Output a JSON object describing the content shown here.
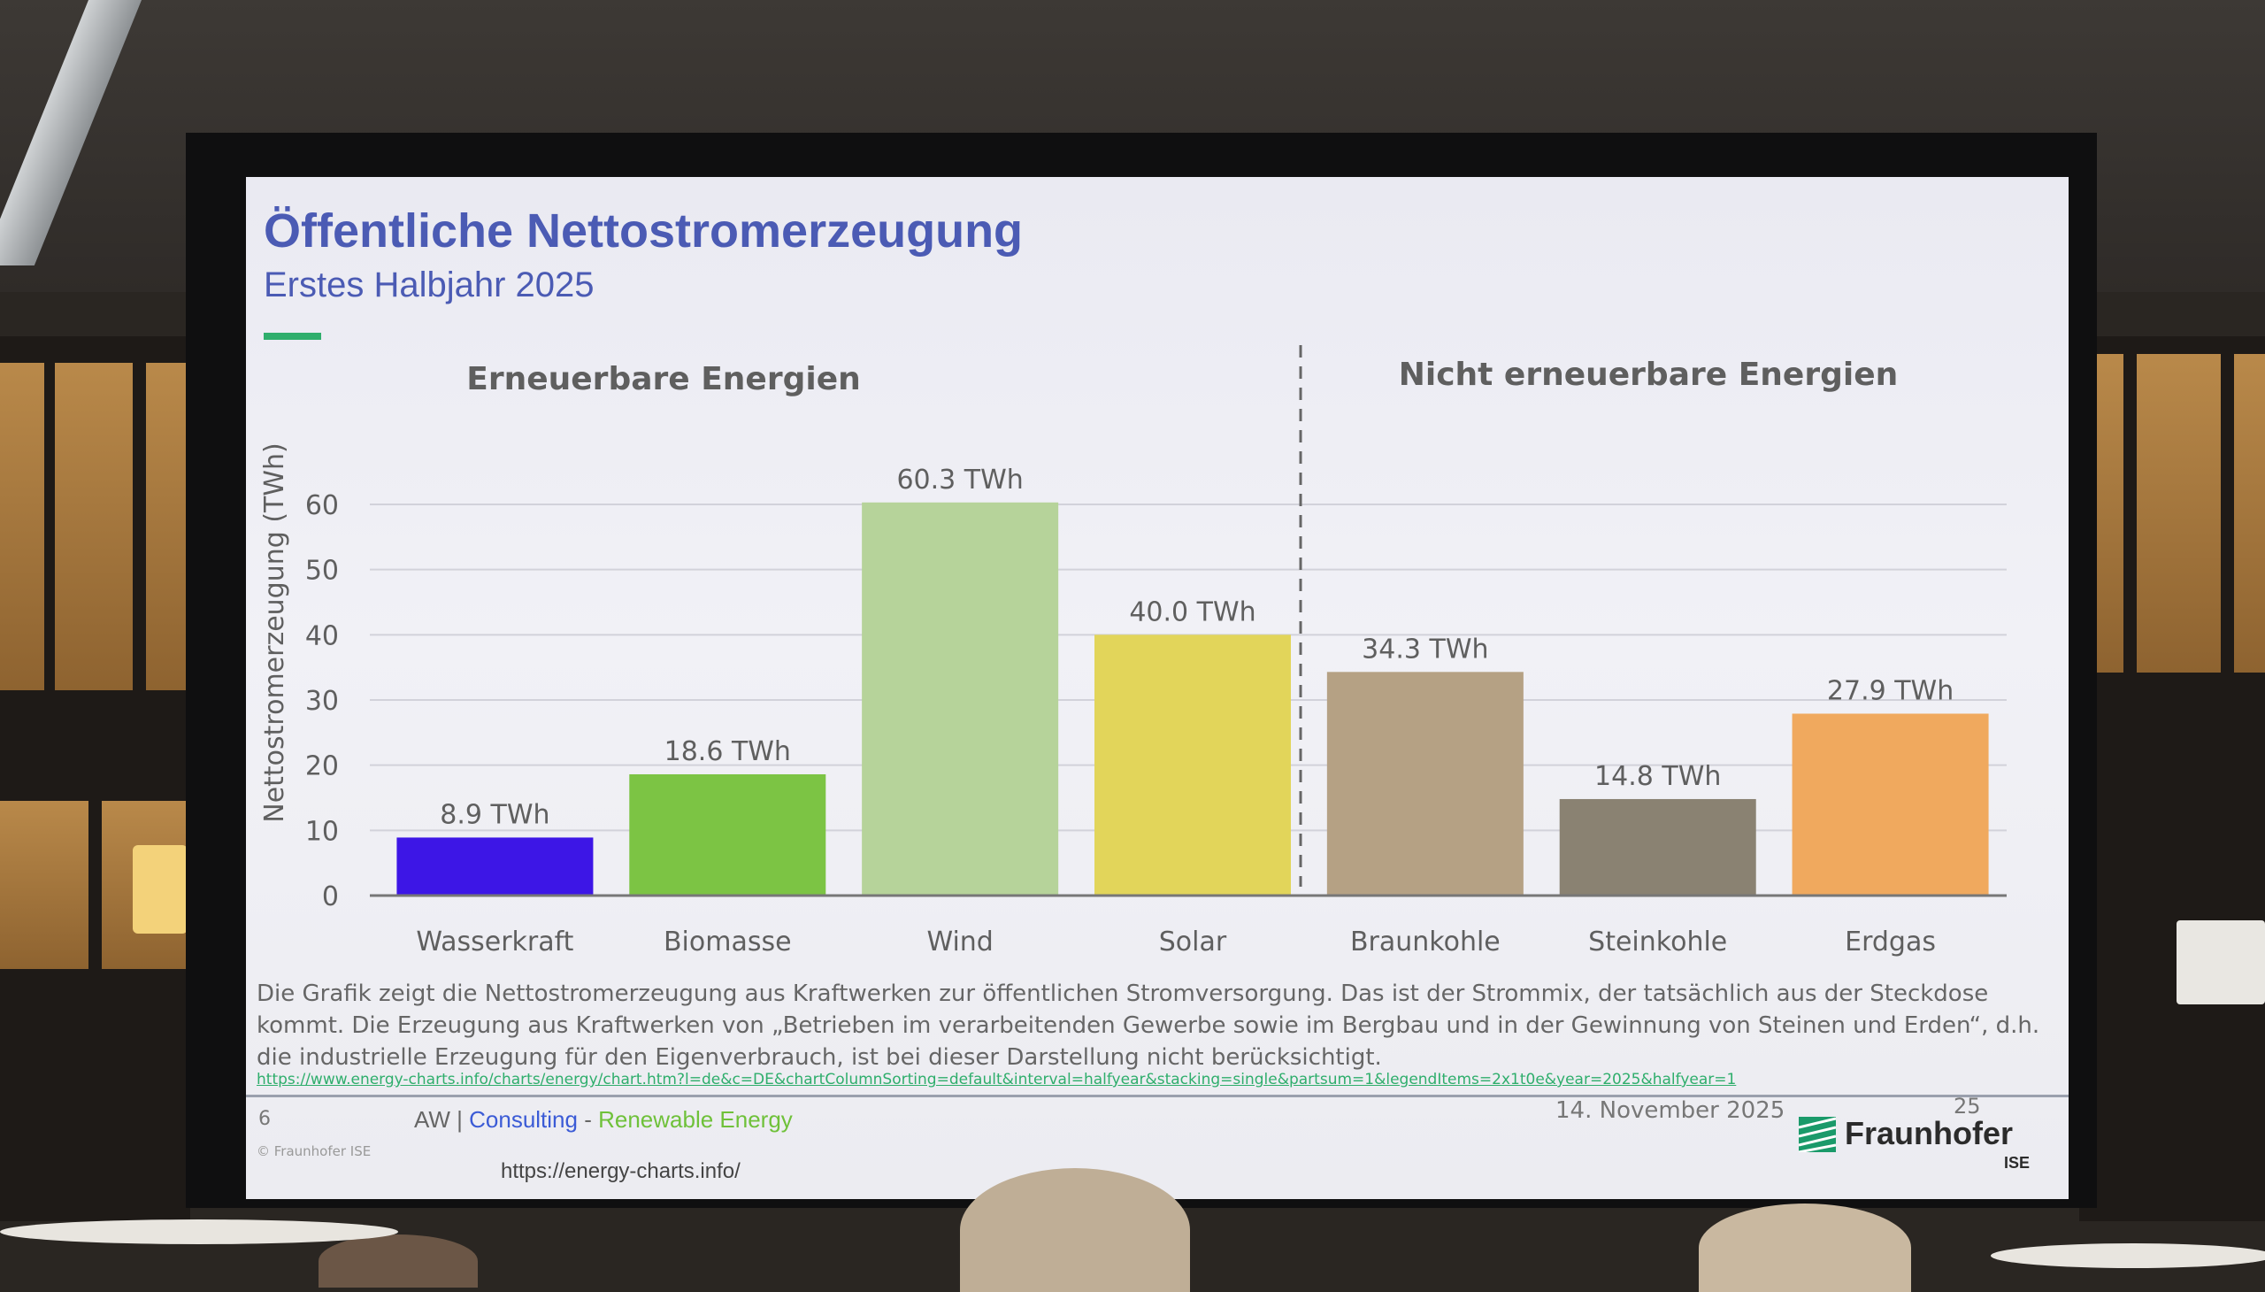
{
  "slide": {
    "title": "Öffentliche Nettostromerzeugung",
    "subtitle": "Erstes Halbjahr 2025",
    "caption": "Die Grafik zeigt die Nettostromerzeugung aus Kraftwerken zur öffentlichen Stromversorgung. Das ist der Strommix, der tatsächlich aus der Steckdose kommt. Die Erzeugung aus Kraftwerken von „Betrieben im verarbeitenden Gewerbe sowie im Bergbau und in der Gewinnung von Steinen und Erden“, d.h. die industrielle Erzeugung für den Eigenverbrauch, ist bei dieser Darstellung nicht berücksichtigt.",
    "source_link": "https://www.energy-charts.info/charts/energy/chart.htm?l=de&c=DE&chartColumnSorting=default&interval=halfyear&stacking=single&partsum=1&legendItems=2x1t0e&year=2025&halfyear=1",
    "footer": {
      "page_left": "6",
      "aw_prefix": "AW | ",
      "aw_consulting": "Consulting",
      "aw_dash": " - ",
      "aw_renewable": "Renewable Energy",
      "copyright": "© Fraunhofer ISE",
      "date": "14. November 2025",
      "page_right": "25",
      "url": "https://energy-charts.info/",
      "logo_text": "Fraunhofer",
      "logo_sub": "ISE"
    },
    "colors": {
      "title": "#4b5bb4",
      "accent": "#2fae6c"
    }
  },
  "chart_data": {
    "type": "bar",
    "group_labels": [
      "Erneuerbare Energien",
      "Nicht erneuerbare Energien"
    ],
    "ylabel": "Nettostromerzeugung (TWh)",
    "xlabel": "",
    "ylim": [
      0,
      60
    ],
    "yticks": [
      0,
      10,
      20,
      30,
      40,
      50,
      60
    ],
    "grid": true,
    "categories": [
      "Wasserkraft",
      "Biomasse",
      "Wind",
      "Solar",
      "Braunkohle",
      "Steinkohle",
      "Erdgas"
    ],
    "values": [
      8.9,
      18.6,
      60.3,
      40.0,
      34.3,
      14.8,
      27.9
    ],
    "data_labels": [
      "8.9 TWh",
      "18.6 TWh",
      "60.3 TWh",
      "40.0 TWh",
      "34.3 TWh",
      "14.8 TWh",
      "27.9 TWh"
    ],
    "colors": [
      "#3d16e6",
      "#7cc444",
      "#b6d39a",
      "#e2d55a",
      "#b5a184",
      "#8a8272",
      "#f0a95e"
    ],
    "group_split_after": 3,
    "divider": "dashed"
  }
}
